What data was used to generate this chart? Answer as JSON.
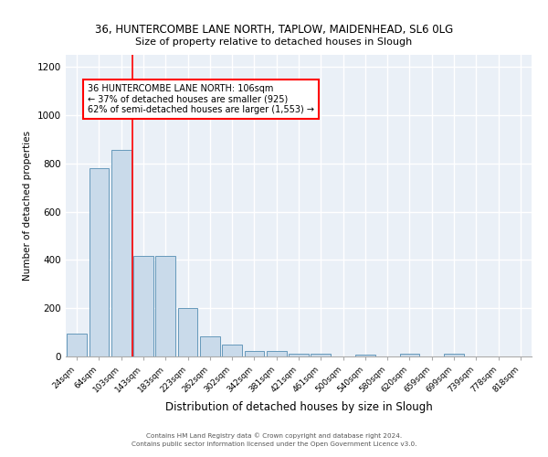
{
  "title_line1": "36, HUNTERCOMBE LANE NORTH, TAPLOW, MAIDENHEAD, SL6 0LG",
  "title_line2": "Size of property relative to detached houses in Slough",
  "xlabel": "Distribution of detached houses by size in Slough",
  "ylabel": "Number of detached properties",
  "bar_labels": [
    "24sqm",
    "64sqm",
    "103sqm",
    "143sqm",
    "183sqm",
    "223sqm",
    "262sqm",
    "302sqm",
    "342sqm",
    "381sqm",
    "421sqm",
    "461sqm",
    "500sqm",
    "540sqm",
    "580sqm",
    "620sqm",
    "659sqm",
    "699sqm",
    "739sqm",
    "778sqm",
    "818sqm"
  ],
  "bar_values": [
    95,
    780,
    855,
    415,
    415,
    200,
    85,
    50,
    22,
    22,
    12,
    10,
    0,
    8,
    0,
    10,
    0,
    12,
    0,
    0,
    0
  ],
  "bar_color": "#c9daea",
  "bar_edge_color": "#6699bb",
  "vline_color": "red",
  "vline_x_index": 2.5,
  "annotation_text": "36 HUNTERCOMBE LANE NORTH: 106sqm\n← 37% of detached houses are smaller (925)\n62% of semi-detached houses are larger (1,553) →",
  "annotation_box_color": "white",
  "annotation_box_edge": "red",
  "ylim": [
    0,
    1250
  ],
  "yticks": [
    0,
    200,
    400,
    600,
    800,
    1000,
    1200
  ],
  "background_color": "#eaf0f7",
  "grid_color": "white",
  "footer_line1": "Contains HM Land Registry data © Crown copyright and database right 2024.",
  "footer_line2": "Contains public sector information licensed under the Open Government Licence v3.0."
}
